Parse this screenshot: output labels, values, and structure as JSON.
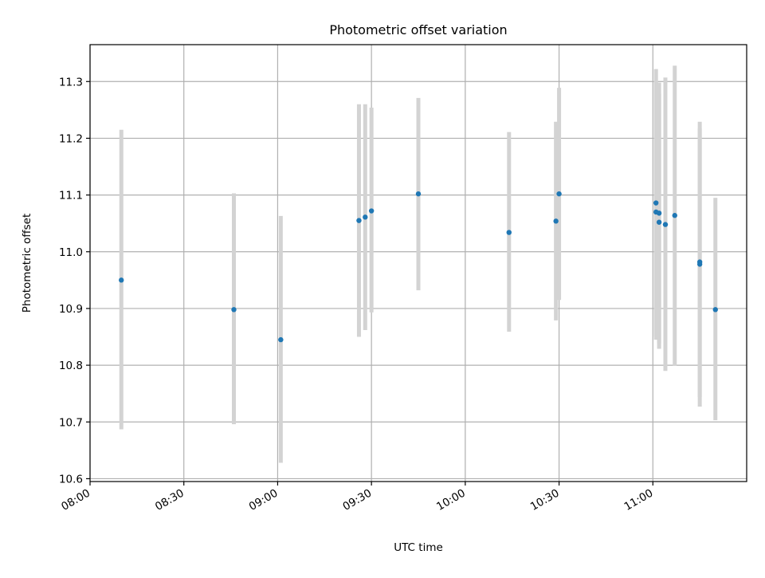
{
  "chart_data": {
    "type": "scatter",
    "title": "Photometric offset variation",
    "xlabel": "UTC time",
    "ylabel": "Photometric offset",
    "x_type": "time",
    "xlim": [
      "08:00",
      "11:30"
    ],
    "ylim": [
      10.595,
      11.365
    ],
    "x_ticks": [
      "08:00",
      "08:30",
      "09:00",
      "09:30",
      "10:00",
      "10:30",
      "11:00"
    ],
    "y_ticks": [
      "10.6",
      "10.7",
      "10.8",
      "10.9",
      "11.0",
      "11.1",
      "11.2",
      "11.3"
    ],
    "grid": true,
    "legend": "none",
    "colors": {
      "point": "#1f77b4",
      "errorbar": "#d3d3d3",
      "grid": "#b0b0b0"
    },
    "points": [
      {
        "x": "08:10",
        "y": 10.95,
        "ylow": 10.687,
        "yhigh": 11.215
      },
      {
        "x": "08:46",
        "y": 10.898,
        "ylow": 10.696,
        "yhigh": 11.103
      },
      {
        "x": "09:01",
        "y": 10.845,
        "ylow": 10.628,
        "yhigh": 11.063
      },
      {
        "x": "09:26",
        "y": 11.055,
        "ylow": 10.85,
        "yhigh": 11.26
      },
      {
        "x": "09:28",
        "y": 11.061,
        "ylow": 10.862,
        "yhigh": 11.26
      },
      {
        "x": "09:30",
        "y": 11.072,
        "ylow": 10.893,
        "yhigh": 11.254
      },
      {
        "x": "09:45",
        "y": 11.102,
        "ylow": 10.932,
        "yhigh": 11.271
      },
      {
        "x": "10:14",
        "y": 11.034,
        "ylow": 10.859,
        "yhigh": 11.211
      },
      {
        "x": "10:29",
        "y": 11.054,
        "ylow": 10.879,
        "yhigh": 11.229
      },
      {
        "x": "10:30",
        "y": 11.102,
        "ylow": 10.915,
        "yhigh": 11.289
      },
      {
        "x": "11:01",
        "y": 11.086,
        "ylow": 10.845,
        "yhigh": 11.322
      },
      {
        "x": "11:01",
        "y": 11.07,
        "ylow": 10.85,
        "yhigh": 11.3
      },
      {
        "x": "11:02",
        "y": 11.052,
        "ylow": 10.829,
        "yhigh": 11.278
      },
      {
        "x": "11:02",
        "y": 11.068,
        "ylow": 10.838,
        "yhigh": 11.298
      },
      {
        "x": "11:04",
        "y": 11.048,
        "ylow": 10.79,
        "yhigh": 11.307
      },
      {
        "x": "11:07",
        "y": 11.064,
        "ylow": 10.799,
        "yhigh": 11.328
      },
      {
        "x": "11:15",
        "y": 10.978,
        "ylow": 10.727,
        "yhigh": 11.229
      },
      {
        "x": "11:15",
        "y": 10.982,
        "ylow": 10.744,
        "yhigh": 11.217
      },
      {
        "x": "11:20",
        "y": 10.898,
        "ylow": 10.703,
        "yhigh": 11.095
      }
    ]
  }
}
